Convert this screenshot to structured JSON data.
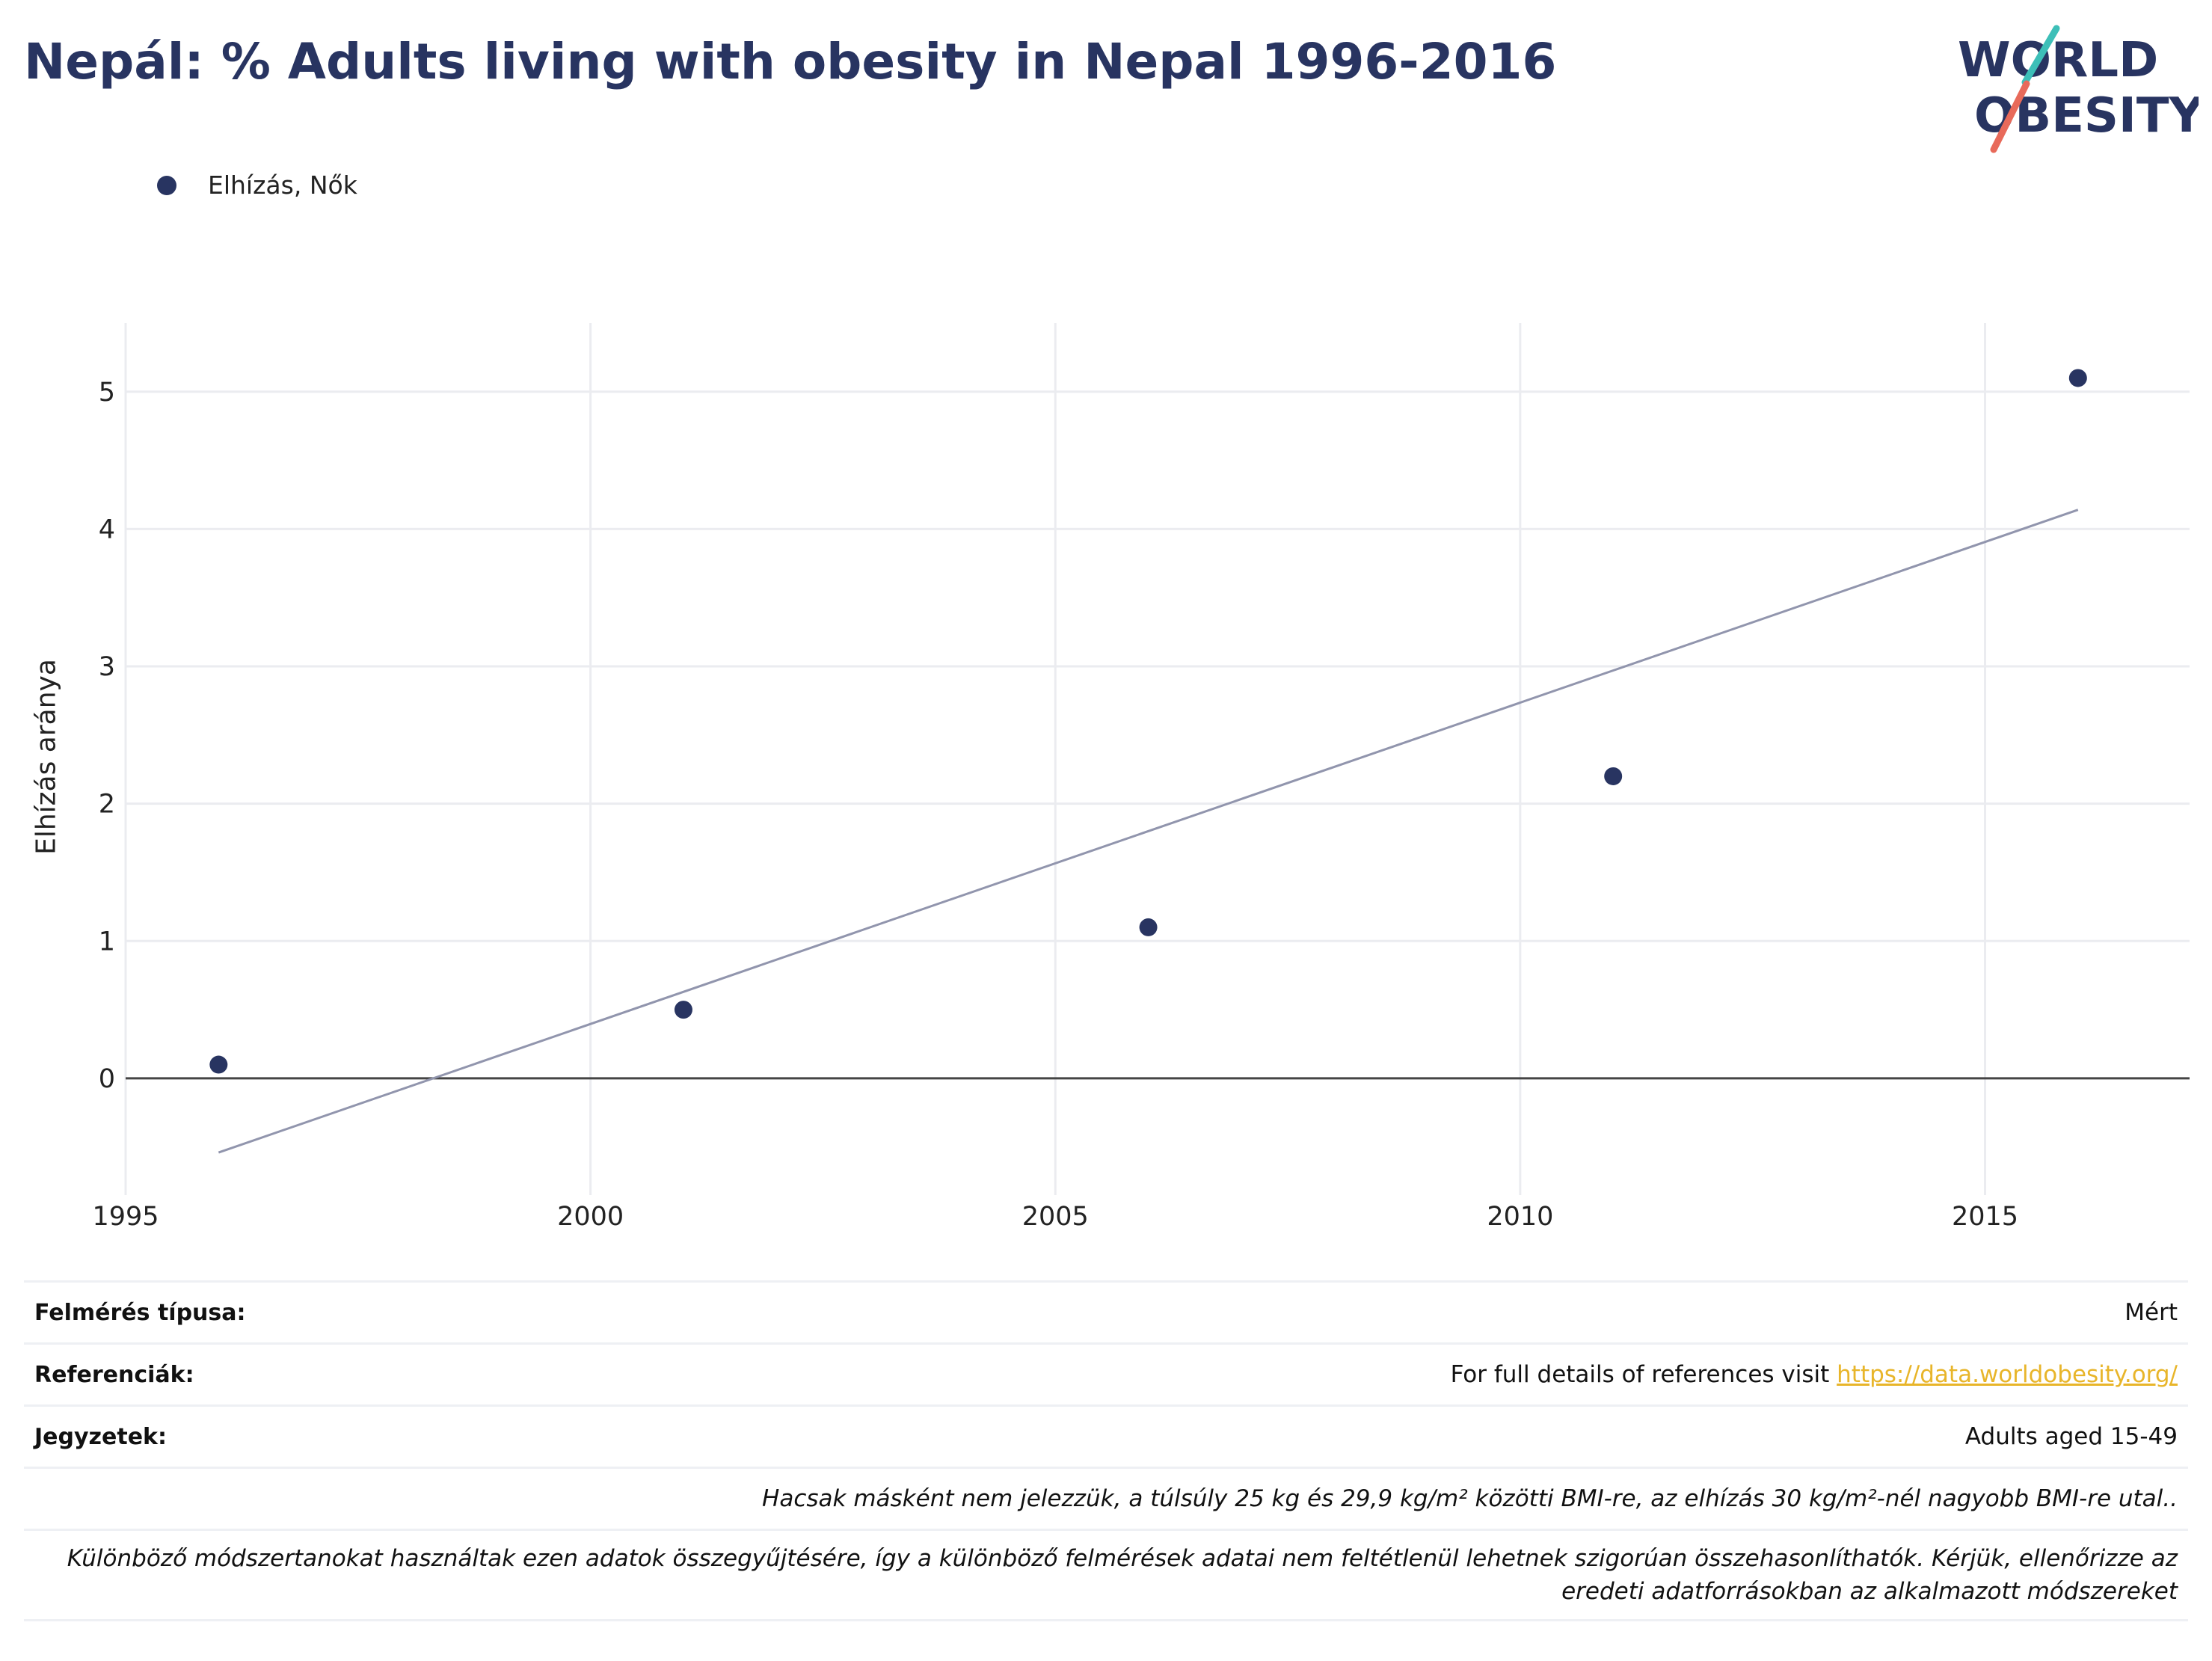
{
  "header": {
    "title": "Nepál: % Adults living with obesity in Nepal 1996-2016",
    "logo_line1": "WORLD",
    "logo_line2": "OBESITY"
  },
  "legend": {
    "label": "Elhízás, Nők"
  },
  "colors": {
    "series": "#283461",
    "trend": "#9195ad",
    "title": "#283461",
    "link": "#e8b52a",
    "logo_teal": "#3dbfb8",
    "logo_coral": "#e86a5a"
  },
  "chart_data": {
    "type": "scatter",
    "title": "Nepál: % Adults living with obesity in Nepal 1996-2016",
    "xlabel": "",
    "ylabel": "Elhízás aránya",
    "xlim": [
      1995,
      2017.2
    ],
    "ylim": [
      -0.85,
      5.5
    ],
    "x_ticks": [
      1995,
      2000,
      2005,
      2010,
      2015
    ],
    "y_ticks": [
      0,
      1,
      2,
      3,
      4,
      5
    ],
    "grid": true,
    "legend_position": "top-left",
    "series": [
      {
        "name": "Elhízás, Nők",
        "x": [
          1996,
          2001,
          2006,
          2011,
          2016
        ],
        "y": [
          0.1,
          0.5,
          1.1,
          2.2,
          5.1
        ]
      }
    ],
    "trendline": {
      "x": [
        1996,
        2016
      ],
      "y": [
        -0.54,
        4.14
      ]
    }
  },
  "info": {
    "survey_label": "Felmérés típusa:",
    "survey_value": "Mért",
    "refs_label": "Referenciák:",
    "refs_text": "For full details of references visit ",
    "refs_link": "https://data.worldobesity.org/",
    "notes_label": "Jegyzetek:",
    "notes_value": "Adults aged 15-49",
    "note_bmi": "Hacsak másként nem jelezzük, a túlsúly 25 kg és 29,9 kg/m² közötti BMI-re, az elhízás 30 kg/m²-nél nagyobb BMI-re utal..",
    "note_methods": "Különböző módszertanokat használtak ezen adatok összegyűjtésére, így a különböző felmérések adatai nem feltétlenül lehetnek szigorúan összehasonlíthatók. Kérjük, ellenőrizze az eredeti adatforrásokban az alkalmazott módszereket"
  }
}
